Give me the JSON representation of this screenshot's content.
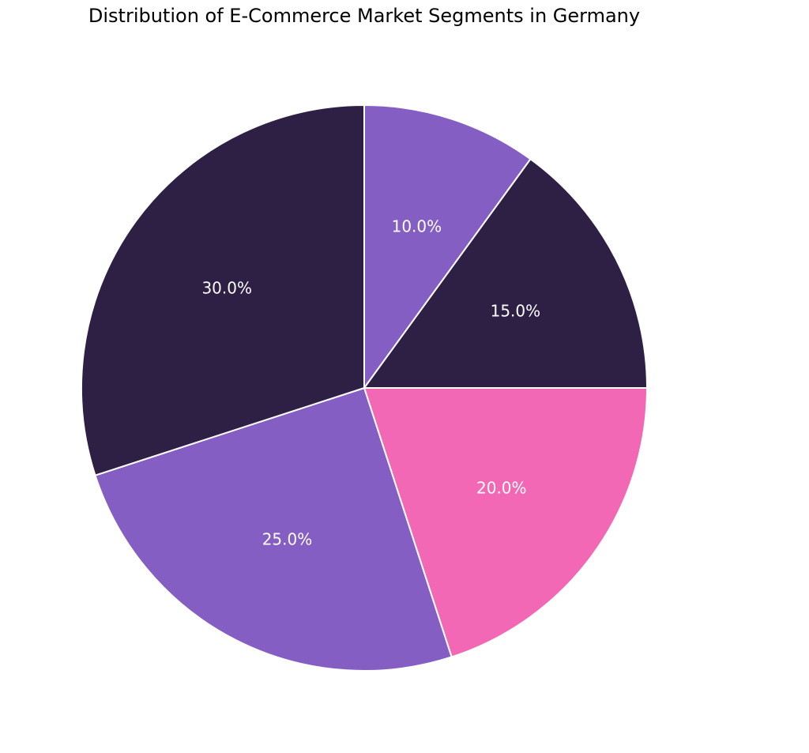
{
  "chart_data": {
    "type": "pie",
    "title": "Distribution of E-Commerce Market Segments in Germany",
    "slices": [
      {
        "value": 10.0,
        "label": "10.0%",
        "color": "#845ec2"
      },
      {
        "value": 15.0,
        "label": "15.0%",
        "color": "#2e1f45"
      },
      {
        "value": 20.0,
        "label": "20.0%",
        "color": "#f368b5"
      },
      {
        "value": 25.0,
        "label": "25.0%",
        "color": "#845ec2"
      },
      {
        "value": 30.0,
        "label": "30.0%",
        "color": "#2e1f45"
      }
    ],
    "start_angle_deg": 90,
    "direction": "clockwise",
    "edge_color": "#ffffff"
  }
}
